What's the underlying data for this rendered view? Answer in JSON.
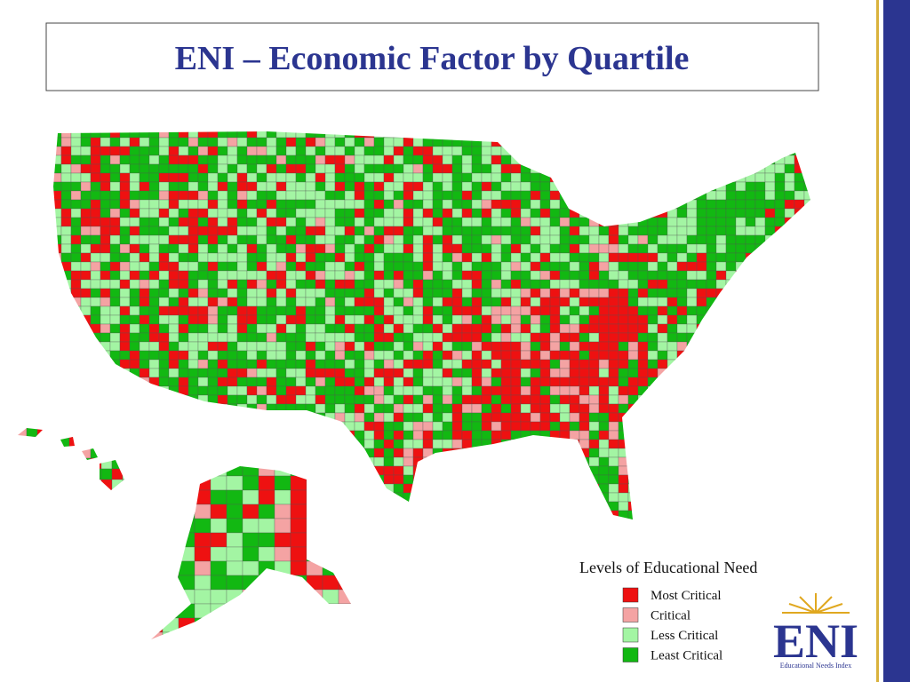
{
  "title": "ENI – Economic Factor by Quartile",
  "legend": {
    "title": "Levels of Educational Need",
    "items": [
      {
        "label": "Most Critical",
        "color": "#ee1111"
      },
      {
        "label": "Critical",
        "color": "#f4a3a3"
      },
      {
        "label": "Less Critical",
        "color": "#a3f5a3"
      },
      {
        "label": "Least Critical",
        "color": "#12b812"
      }
    ]
  },
  "logo": {
    "mark": "ENI",
    "name": "Educational Needs Index"
  }
}
